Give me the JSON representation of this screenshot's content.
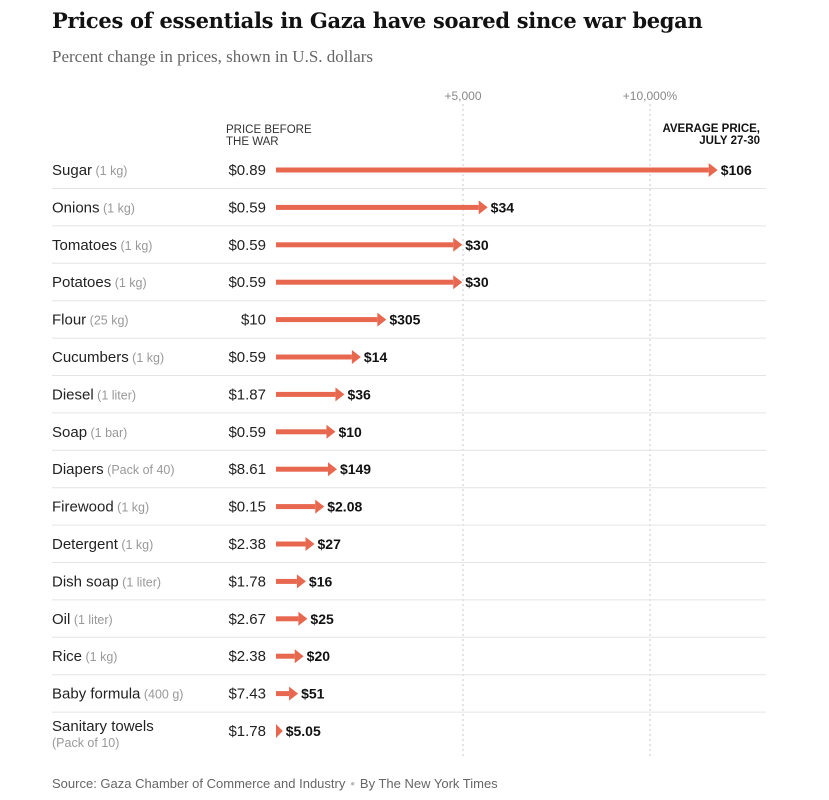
{
  "chart_data": {
    "type": "bar",
    "title": "Prices of essentials in Gaza have soared since war began",
    "subtitle": "Percent change in prices, shown in U.S. dollars",
    "xlabel": "",
    "ylabel": "",
    "ticks": [
      {
        "value": 5000,
        "label": "+5,000"
      },
      {
        "value": 10000,
        "label": "+10,000%"
      }
    ],
    "xlim": [
      0,
      12500
    ],
    "price_before_header": [
      "PRICE BEFORE",
      "THE WAR"
    ],
    "average_price_header": [
      "AVERAGE PRICE,",
      "JULY 27-30"
    ],
    "bar_color": "#e8684f",
    "items": [
      {
        "name": "Sugar",
        "unit": "(1 kg)",
        "before": "$0.89",
        "after": "$106",
        "pct_change": 11810
      },
      {
        "name": "Onions",
        "unit": "(1 kg)",
        "before": "$0.59",
        "after": "$34",
        "pct_change": 5660
      },
      {
        "name": "Tomatoes",
        "unit": "(1 kg)",
        "before": "$0.59",
        "after": "$30",
        "pct_change": 4980
      },
      {
        "name": "Potatoes",
        "unit": "(1 kg)",
        "before": "$0.59",
        "after": "$30",
        "pct_change": 4980
      },
      {
        "name": "Flour",
        "unit": "(25 kg)",
        "before": "$10",
        "after": "$305",
        "pct_change": 2950
      },
      {
        "name": "Cucumbers",
        "unit": "(1 kg)",
        "before": "$0.59",
        "after": "$14",
        "pct_change": 2270
      },
      {
        "name": "Diesel",
        "unit": "(1 liter)",
        "before": "$1.87",
        "after": "$36",
        "pct_change": 1830
      },
      {
        "name": "Soap",
        "unit": "(1 bar)",
        "before": "$0.59",
        "after": "$10",
        "pct_change": 1590
      },
      {
        "name": "Diapers",
        "unit": "(Pack of 40)",
        "before": "$8.61",
        "after": "$149",
        "pct_change": 1630
      },
      {
        "name": "Firewood",
        "unit": "(1 kg)",
        "before": "$0.15",
        "after": "$2.08",
        "pct_change": 1290
      },
      {
        "name": "Detergent",
        "unit": "(1 kg)",
        "before": "$2.38",
        "after": "$27",
        "pct_change": 1030
      },
      {
        "name": "Dish soap",
        "unit": "(1 liter)",
        "before": "$1.78",
        "after": "$16",
        "pct_change": 800
      },
      {
        "name": "Oil",
        "unit": "(1 liter)",
        "before": "$2.67",
        "after": "$25",
        "pct_change": 840
      },
      {
        "name": "Rice",
        "unit": "(1 kg)",
        "before": "$2.38",
        "after": "$20",
        "pct_change": 740
      },
      {
        "name": "Baby formula",
        "unit": "(400 g)",
        "before": "$7.43",
        "after": "$51",
        "pct_change": 590
      },
      {
        "name": "Sanitary towels",
        "unit": "(Pack of 10)",
        "before": "$1.78",
        "after": "$5.05",
        "pct_change": 180
      }
    ]
  },
  "footer": {
    "source": "Source: Gaza Chamber of Commerce and Industry",
    "credit": "By The New York Times"
  }
}
